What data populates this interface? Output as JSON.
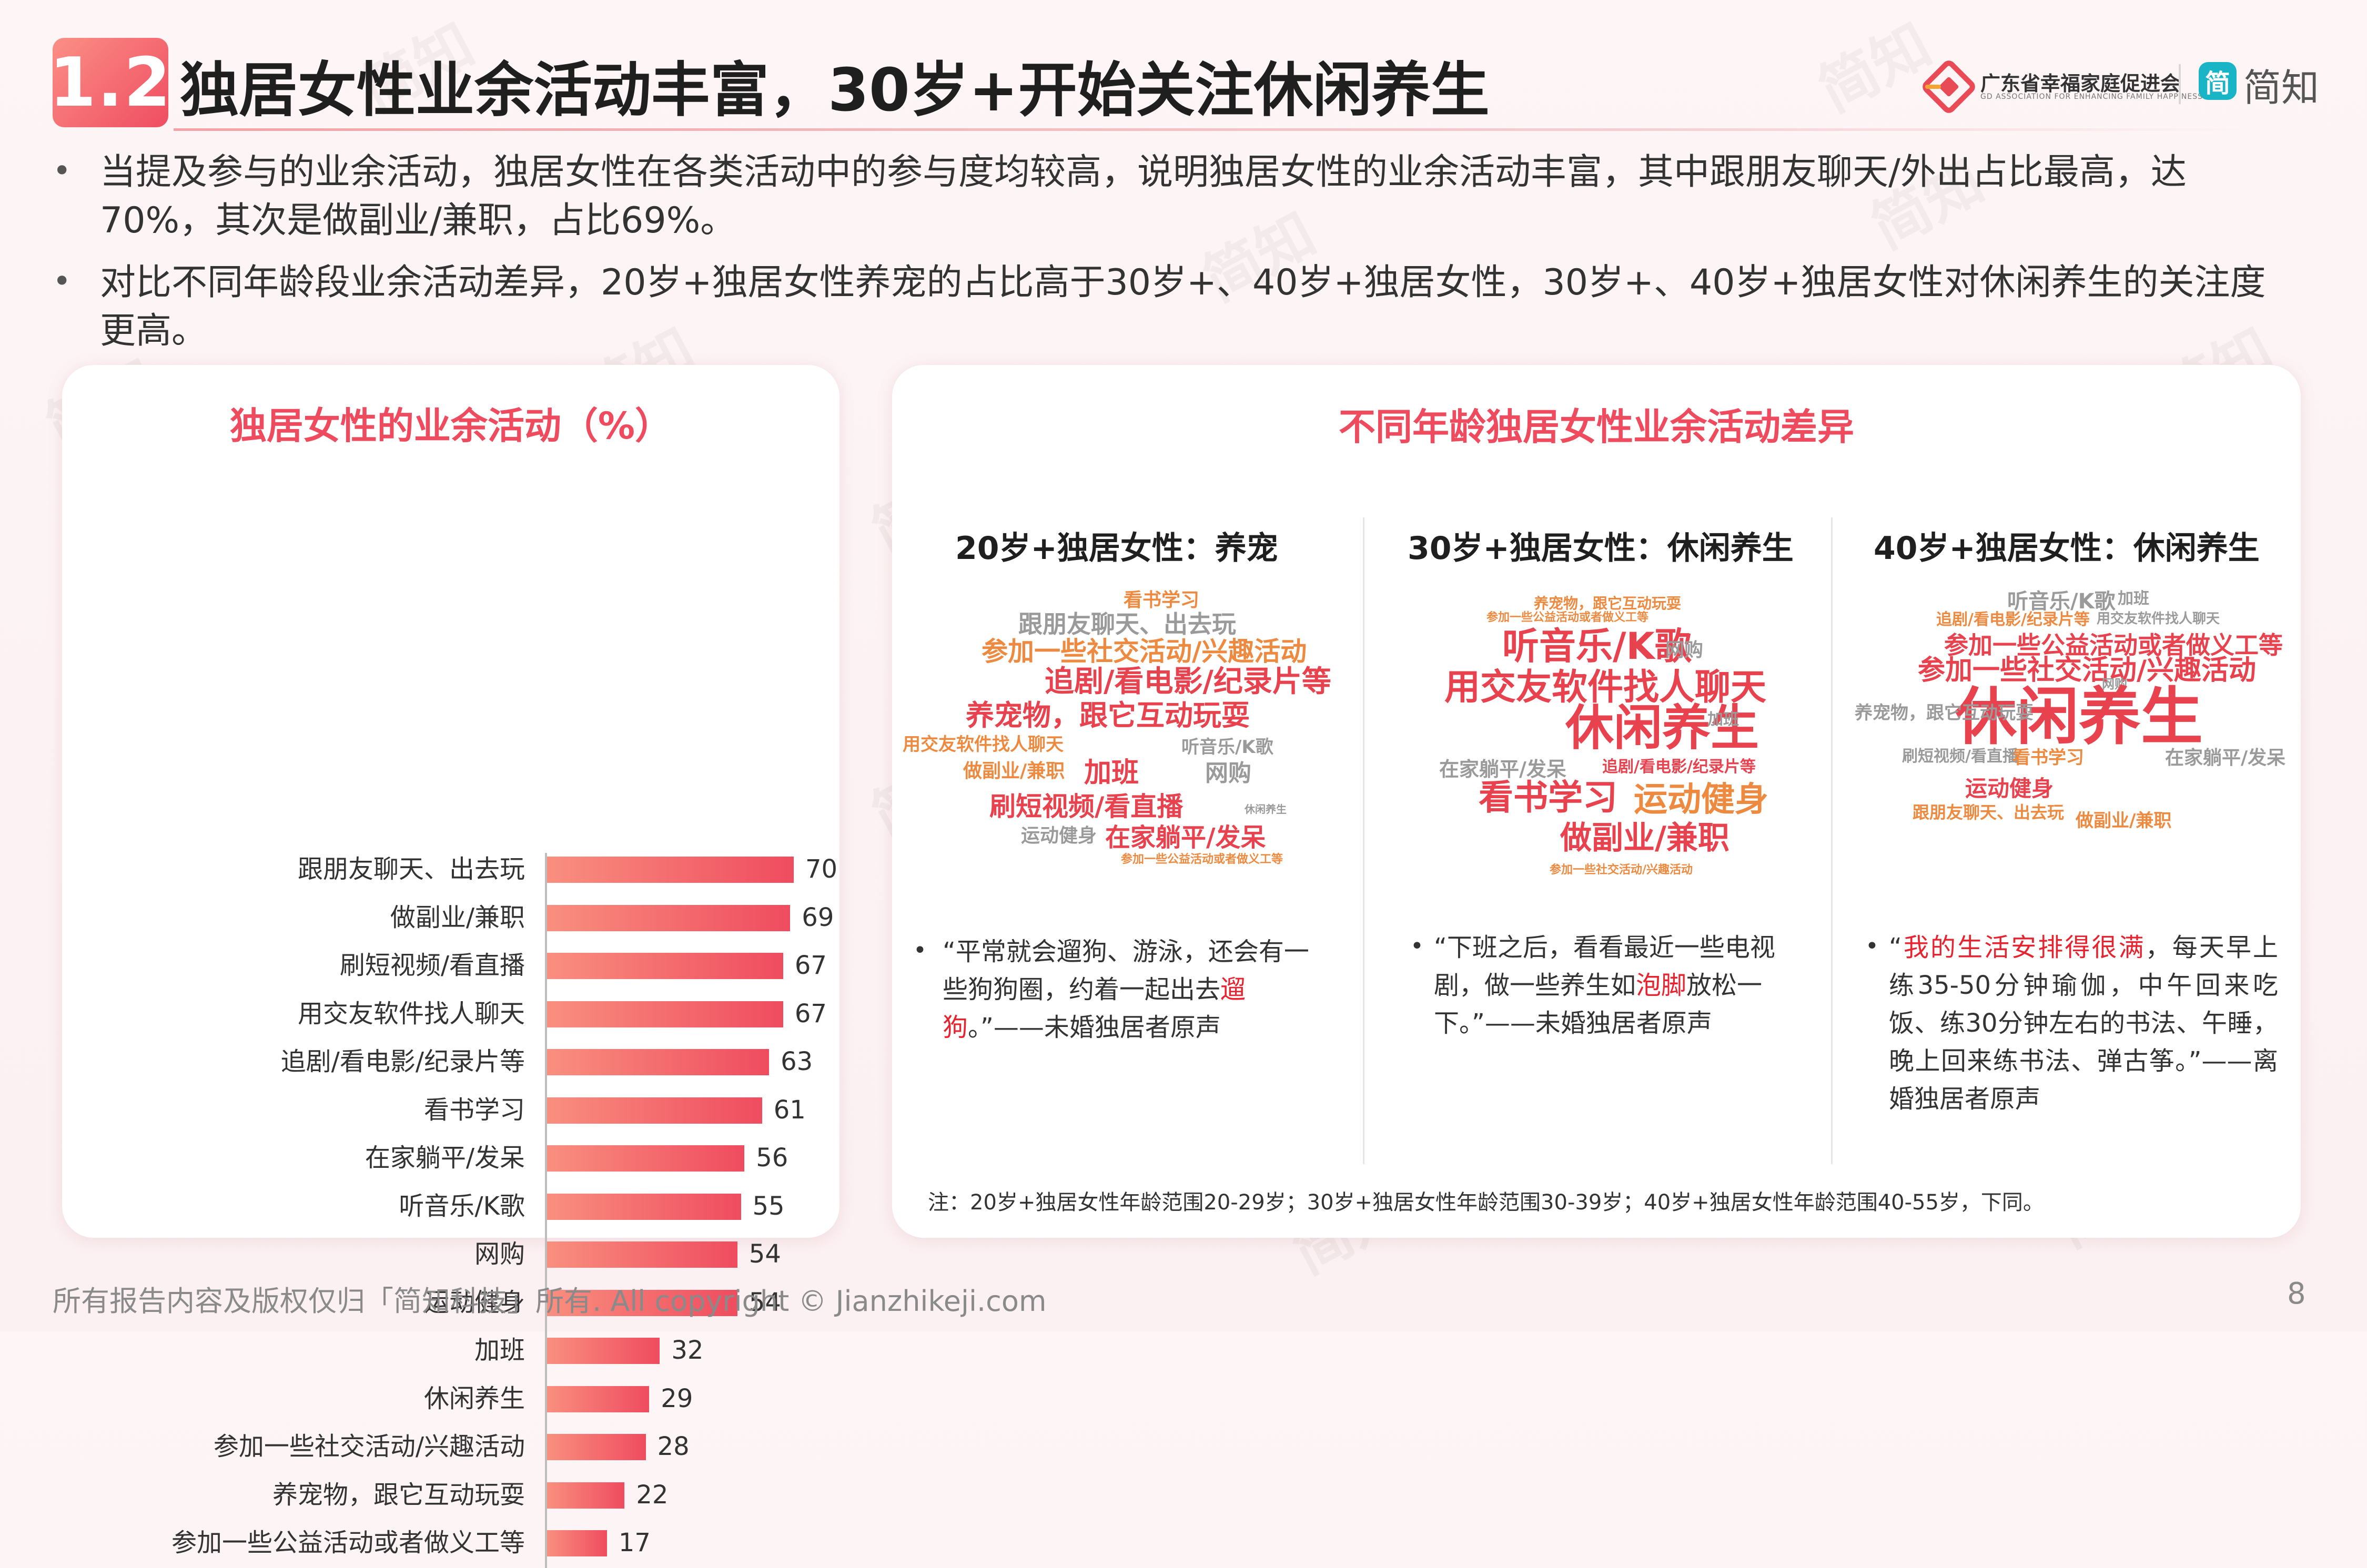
{
  "header": {
    "section_number": "1.2",
    "title": "独居女性业余活动丰富，30岁+开始关注休闲养生",
    "org_name": "广东省幸福家庭促进会",
    "org_sub": "GD ASSOCIATION FOR ENHANCING FAMILY HAPPINESS",
    "brand_glyph": "简",
    "brand_name": "简知"
  },
  "bullets": [
    {
      "text": "当提及参与的业余活动，独居女性在各类活动中的参与度均较高，说明独居女性的业余活动丰富，其中跟朋友聊天/外出占比最高，达70%，其次是做副业/兼职，占比69%。"
    },
    {
      "text": "对比不同年龄段业余活动差异，20岁+独居女性养宠的占比高于30岁+、40岁+独居女性，30岁+、40岁+独居女性对休闲养生的关注度更高。"
    }
  ],
  "left_card": {
    "title": "独居女性的业余活动（%）"
  },
  "chart_data": {
    "type": "bar",
    "orientation": "horizontal",
    "title": "独居女性的业余活动（%）",
    "categories": [
      "跟朋友聊天、出去玩",
      "做副业/兼职",
      "刷短视频/看直播",
      "用交友软件找人聊天",
      "追剧/看电影/纪录片等",
      "看书学习",
      "在家躺平/发呆",
      "听音乐/K歌",
      "网购",
      "运动健身",
      "加班",
      "休闲养生",
      "参加一些社交活动/兴趣活动",
      "养宠物，跟它互动玩耍",
      "参加一些公益活动或者做义工等"
    ],
    "values": [
      70,
      69,
      67,
      67,
      63,
      61,
      56,
      55,
      54,
      54,
      32,
      29,
      28,
      22,
      17
    ],
    "xlim": [
      0,
      100
    ],
    "grid": false,
    "legend": "none",
    "bar_color_start": "#f98f7f",
    "bar_color_end": "#ef4c5f"
  },
  "right_card": {
    "title": "不同年龄独居女性业余活动差异",
    "groups": [
      {
        "title": "20岁+独居女性：养宠",
        "words": [
          "看书学习",
          "跟朋友聊天、出去玩",
          "参加一些社交活动/兴趣活动",
          "追剧/看电影/纪录片等",
          "养宠物，跟它互动玩耍",
          "用交友软件找人聊天",
          "听音乐/K歌",
          "做副业/兼职",
          "加班",
          "网购",
          "刷短视频/看直播",
          "运动健身",
          "在家躺平/发呆",
          "参加一些公益活动或者做义工等",
          "休闲养生"
        ],
        "quote": [
          {
            "text": "“平常就会遛狗、游泳，还会有一些狗狗圈，约着一起出去",
            "hl": false
          },
          {
            "text": "遛狗",
            "hl": true
          },
          {
            "text": "。”——未婚独居者原声",
            "hl": false
          }
        ]
      },
      {
        "title": "30岁+独居女性：休闲养生",
        "words": [
          "养宠物，跟它互动玩耍",
          "参加一些公益活动或者做义工等",
          "听音乐/K歌",
          "网购",
          "用交友软件找人聊天",
          "休闲养生",
          "加班",
          "在家躺平/发呆",
          "追剧/看电影/纪录片等",
          "看书学习",
          "运动健身",
          "做副业/兼职",
          "参加一些社交活动/兴趣活动"
        ],
        "quote": [
          {
            "text": "“下班之后，看看最近一些电视剧，做一些养生如",
            "hl": false
          },
          {
            "text": "泡脚",
            "hl": true
          },
          {
            "text": "放松一下。”——未婚独居者原声",
            "hl": false
          }
        ]
      },
      {
        "title": "40岁+独居女性：休闲养生",
        "words": [
          "听音乐/K歌",
          "加班",
          "追剧/看电影/纪录片等",
          "用交友软件找人聊天",
          "参加一些公益活动或者做义工等",
          "参加一些社交活动/兴趣活动",
          "网购",
          "休闲养生",
          "养宠物，跟它互动玩耍",
          "在家躺平/发呆",
          "刷短视频/看直播",
          "看书学习",
          "运动健身",
          "跟朋友聊天、出去玩",
          "做副业/兼职"
        ],
        "quote": [
          {
            "text": "“",
            "hl": false
          },
          {
            "text": "我的生活安排得很满",
            "hl": true
          },
          {
            "text": "，每天早上练35-50分钟瑜伽，中午回来吃饭、练30分钟左右的书法、午睡，晚上回来练书法、弹古筝。”——离婚独居者原声",
            "hl": false
          }
        ]
      }
    ],
    "note": "注：20岁+独居女性年龄范围20-29岁；30岁+独居女性年龄范围30-39岁；40岁+独居女性年龄范围40-55岁，下同。"
  },
  "footer": {
    "copyright": "所有报告内容及版权仅归「简知科技」所有.   All copyright © Jianzhikeji.com",
    "page_number": "8"
  },
  "watermark": {
    "text": "简知"
  },
  "colors": {
    "accent": "#ef4b5f",
    "badge_start": "#fb8f86",
    "badge_end": "#ef4d61",
    "highlight": "#e8222e",
    "brand_teal": "#19b4c6"
  }
}
